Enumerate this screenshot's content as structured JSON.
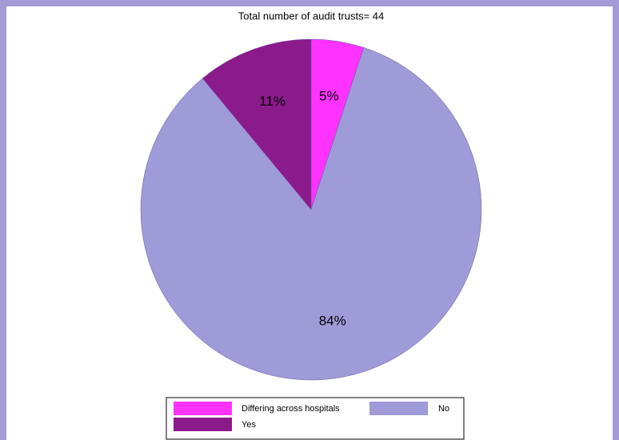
{
  "chart_data": {
    "type": "pie",
    "title": "Total number of audit trusts= 44",
    "categories": [
      "Differing across hospitals",
      "No",
      "Yes"
    ],
    "values": [
      5,
      84,
      11
    ],
    "value_labels": [
      "5%",
      "84%",
      "11%"
    ],
    "colors": [
      "#ff33ff",
      "#9f9ad8",
      "#8b1a8b"
    ],
    "legend": "bottom"
  }
}
